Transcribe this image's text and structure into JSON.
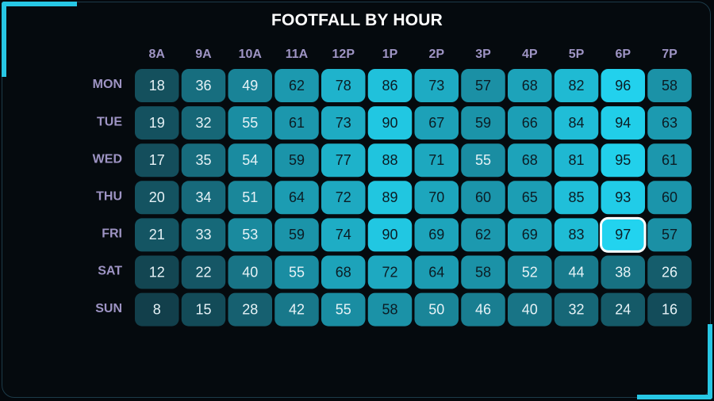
{
  "chart_data": {
    "type": "heatmap",
    "title": "FOOTFALL BY HOUR",
    "x": [
      "8A",
      "9A",
      "10A",
      "11A",
      "12P",
      "1P",
      "2P",
      "3P",
      "4P",
      "5P",
      "6P",
      "7P"
    ],
    "y": [
      "MON",
      "TUE",
      "WED",
      "THU",
      "FRI",
      "SAT",
      "SUN"
    ],
    "values": [
      [
        18,
        36,
        49,
        62,
        78,
        86,
        73,
        57,
        68,
        82,
        96,
        58
      ],
      [
        19,
        32,
        55,
        61,
        73,
        90,
        67,
        59,
        66,
        84,
        94,
        63
      ],
      [
        17,
        35,
        54,
        59,
        77,
        88,
        71,
        55,
        68,
        81,
        95,
        61
      ],
      [
        20,
        34,
        51,
        64,
        72,
        89,
        70,
        60,
        65,
        85,
        93,
        60
      ],
      [
        21,
        33,
        53,
        59,
        74,
        90,
        69,
        62,
        69,
        83,
        97,
        57
      ],
      [
        12,
        22,
        40,
        55,
        68,
        72,
        64,
        58,
        52,
        44,
        38,
        26
      ],
      [
        8,
        15,
        28,
        42,
        55,
        58,
        50,
        46,
        40,
        32,
        24,
        16
      ]
    ],
    "highlight": {
      "row": 4,
      "col": 10
    },
    "color_low": "#123f4b",
    "color_high": "#22d3ef",
    "label_color": "#9e94c4",
    "text_light": "#e6f2f6",
    "text_dark": "#0b1c24"
  }
}
